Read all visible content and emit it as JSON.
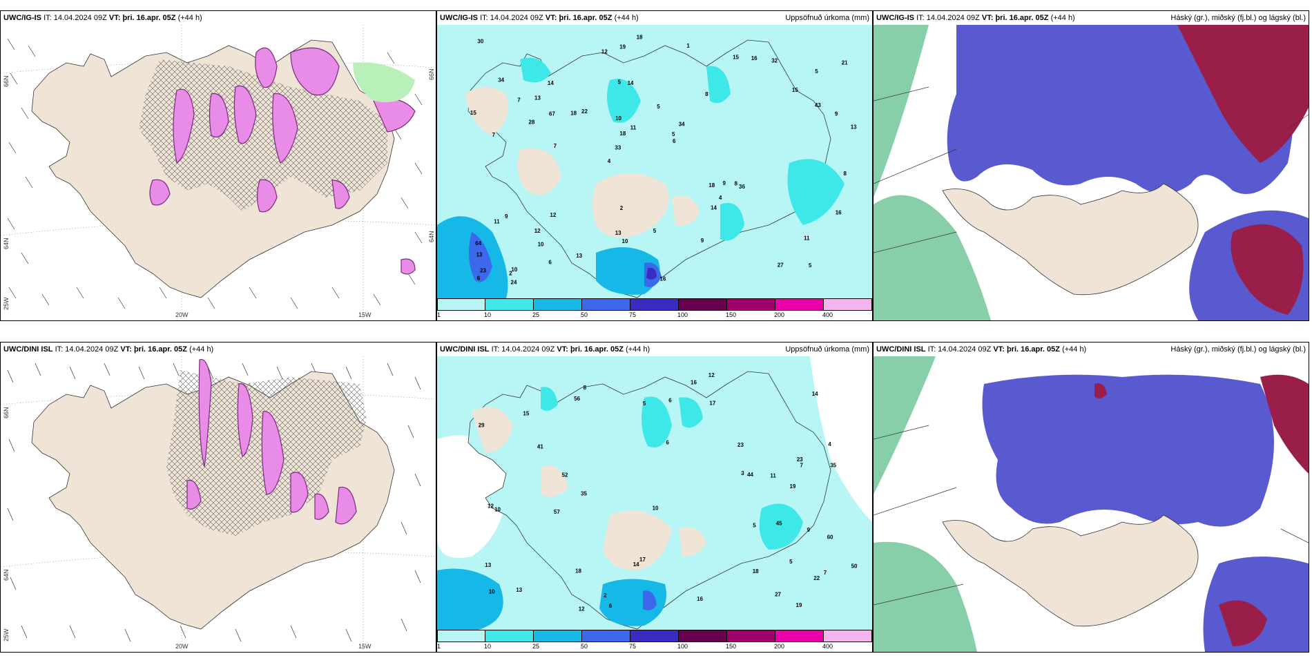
{
  "panels": [
    {
      "id": "top-left",
      "header": {
        "model": "UWC/IG-IS",
        "it_label": "IT:",
        "it": "14.04.2024 09Z",
        "vt_label": "VT:",
        "vt": "þri. 16.apr. 05Z",
        "lead": "(+44 h)",
        "desc": ""
      },
      "coords": {
        "lat_top": "66N",
        "lat_mid": "64N",
        "lon_left": "25W",
        "lon_a": "20W",
        "lon_b": "15W",
        "lat_right_a": "66N",
        "lat_right_b": "64N"
      }
    },
    {
      "id": "top-mid",
      "header": {
        "model": "UWC/IG-IS",
        "it_label": "IT:",
        "it": "14.04.2024 09Z",
        "vt_label": "VT:",
        "vt": "þri. 16.apr. 05Z",
        "lead": "(+44 h)",
        "desc": "Uppsöfnuð úrkoma (mm)"
      }
    },
    {
      "id": "top-right",
      "header": {
        "model": "UWC/IG-IS",
        "it_label": "IT:",
        "it": "14.04.2024 09Z",
        "vt_label": "VT:",
        "vt": "þri. 16.apr. 05Z",
        "lead": "(+44 h)",
        "desc": "Háský (gr.), miðský (fj.bl.) og lágský (bl.)"
      }
    },
    {
      "id": "bottom-left",
      "header": {
        "model": "UWC/DINI ISL",
        "it_label": "IT:",
        "it": "14.04.2024 09Z",
        "vt_label": "VT:",
        "vt": "þri. 16.apr. 05Z",
        "lead": "(+44 h)",
        "desc": ""
      },
      "coords": {
        "lat_top": "66N",
        "lat_mid": "64N",
        "lon_left": "25W",
        "lon_a": "20W",
        "lon_b": "15W"
      }
    },
    {
      "id": "bottom-mid",
      "header": {
        "model": "UWC/DINI ISL",
        "it_label": "IT:",
        "it": "14.04.2024 09Z",
        "vt_label": "VT:",
        "vt": "þri. 16.apr. 05Z",
        "lead": "(+44 h)",
        "desc": "Uppsöfnuð úrkoma (mm)"
      }
    },
    {
      "id": "bottom-right",
      "header": {
        "model": "UWC/DINI ISL",
        "it_label": "IT:",
        "it": "14.04.2024 09Z",
        "vt_label": "VT:",
        "vt": "þri. 16.apr. 05Z",
        "lead": "(+44 h)",
        "desc": "Háský (gr.), miðský (fj.bl.) og lágský (bl.)"
      }
    }
  ],
  "colorbar": {
    "ticks": [
      "1",
      "10",
      "25",
      "50",
      "75",
      "100",
      "150",
      "200",
      "400"
    ],
    "colors": [
      "#b8f6f6",
      "#3ee8e8",
      "#16b8e8",
      "#3c68ec",
      "#3a2cc0",
      "#6a0050",
      "#a0006a",
      "#e800a8",
      "#f4b4f0"
    ]
  },
  "precip_labels_top": [
    "5",
    "7",
    "5",
    "4",
    "8",
    "10",
    "5",
    "5",
    "9",
    "22",
    "13",
    "10",
    "14",
    "34",
    "36",
    "34",
    "19",
    "13",
    "18",
    "43",
    "33",
    "13",
    "18",
    "14",
    "15",
    "12",
    "27",
    "11",
    "8",
    "16",
    "18",
    "28",
    "14",
    "6",
    "9",
    "5",
    "23",
    "10",
    "6",
    "11",
    "15",
    "21",
    "4",
    "9",
    "12",
    "24",
    "6",
    "5",
    "32",
    "18",
    "7",
    "15",
    "13",
    "16",
    "2",
    "1",
    "12",
    "11",
    "16",
    "2",
    "13",
    "9",
    "67",
    "64",
    "30",
    "7",
    "8",
    "10"
  ],
  "precip_labels_bottom": [
    "5",
    "4",
    "7",
    "6",
    "10",
    "8",
    "23",
    "18",
    "14",
    "41",
    "35",
    "29",
    "19",
    "6",
    "13",
    "15",
    "22",
    "56",
    "17",
    "7",
    "12",
    "10",
    "16",
    "3",
    "2",
    "14",
    "16",
    "17",
    "23",
    "50",
    "57",
    "18",
    "12",
    "10",
    "9",
    "27",
    "44",
    "5",
    "19",
    "35",
    "45",
    "11",
    "6",
    "52",
    "60",
    "5",
    "13",
    "12"
  ],
  "colors": {
    "land": "#efe4d6",
    "sea_light": "#b8f6f6",
    "hatch": "#555555",
    "pink": "#e88ce8",
    "purple": "#8a3a8a",
    "green": "#b9f0b9",
    "cloud_blue": "#5a5ad0",
    "cloud_dark": "#9a1e4a",
    "cloud_green": "#5fbf8c"
  }
}
